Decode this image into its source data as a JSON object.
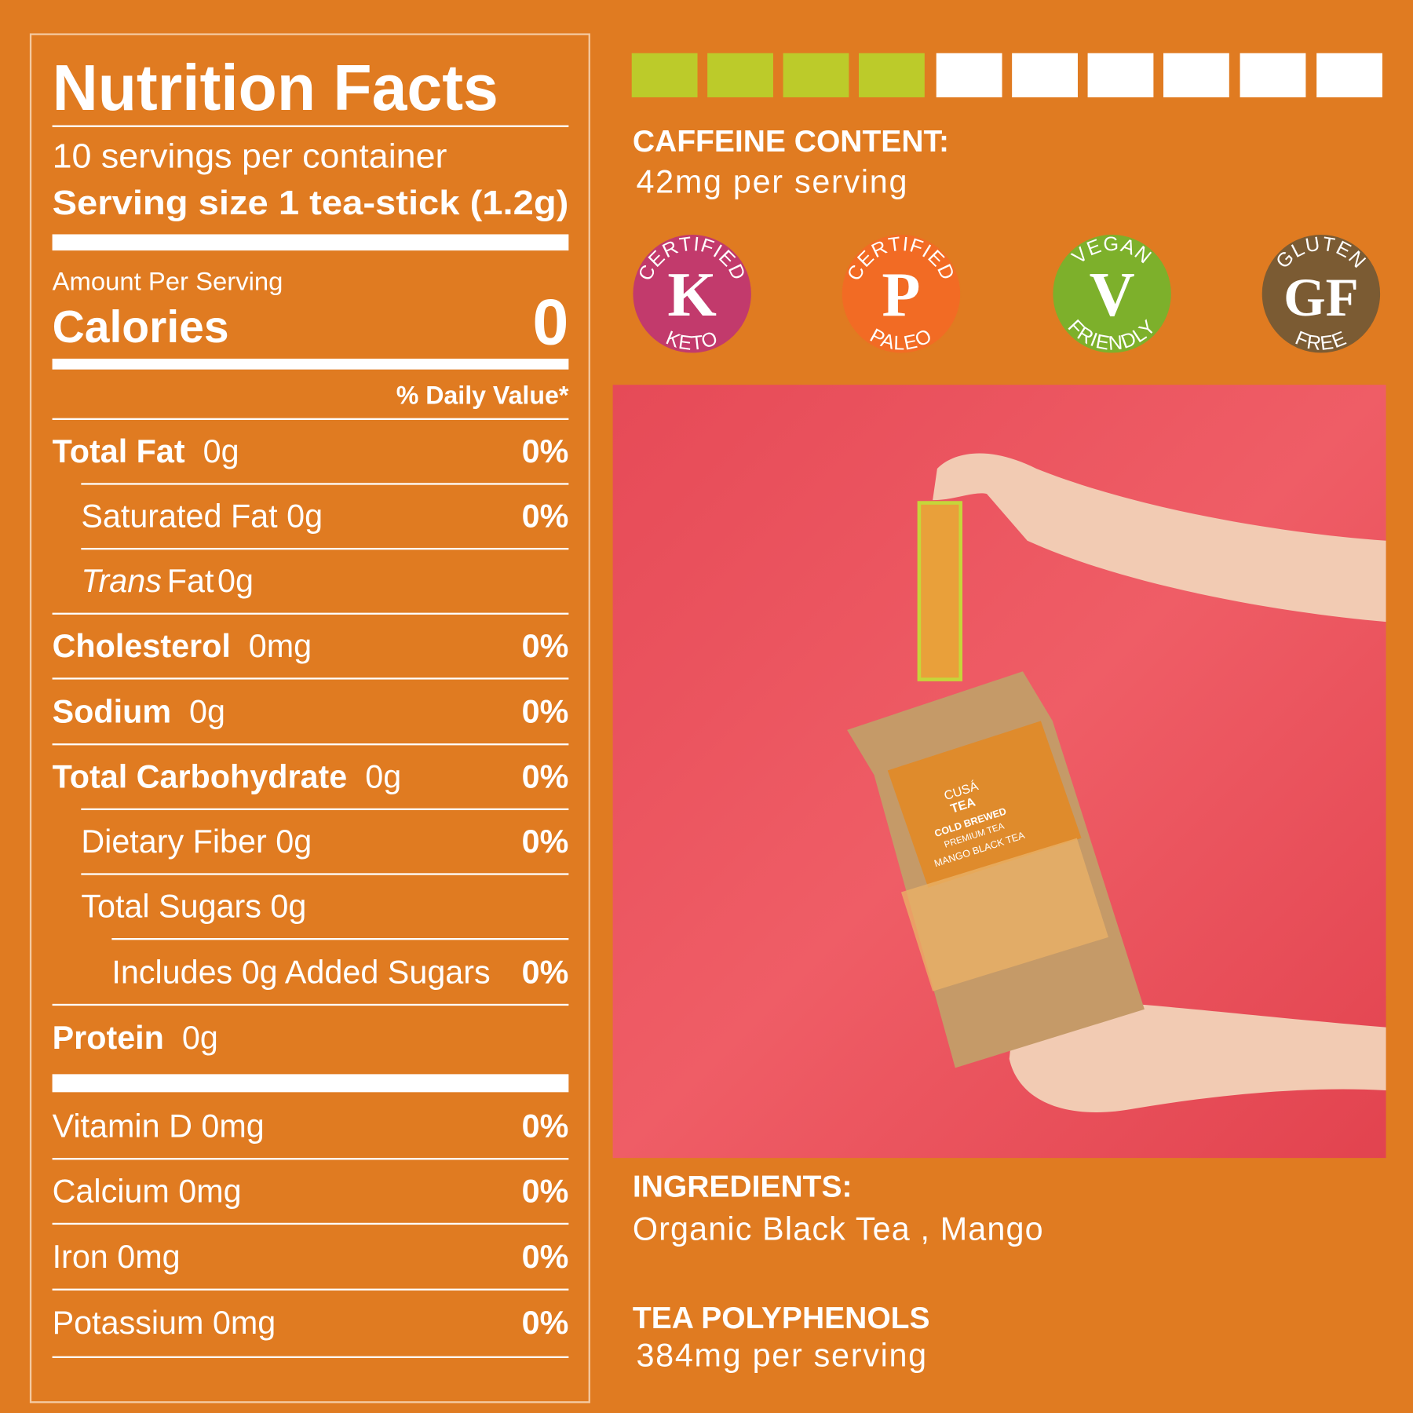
{
  "nutrition": {
    "title": "Nutrition Facts",
    "servings": "10 servings per container",
    "serving_size": "Serving size 1 tea-stick (1.2g)",
    "amount_per_serving": "Amount Per Serving",
    "calories_label": "Calories",
    "calories": 0,
    "daily_value_header": "% Daily Value*",
    "rows": [
      {
        "name": "Total Fat",
        "amount": "0g",
        "daily_value": "0%"
      },
      {
        "name": "Saturated Fat",
        "amount": "0g",
        "daily_value": "0%"
      },
      {
        "emphasis": "Trans",
        "name": "Fat",
        "amount": "0g"
      },
      {
        "name": "Cholesterol",
        "amount": "0mg",
        "daily_value": "0%"
      },
      {
        "name": "Sodium",
        "amount": "0g",
        "daily_value": "0%"
      },
      {
        "name": "Total Carbohydrate",
        "amount": "0g",
        "daily_value": "0%"
      },
      {
        "name": "Dietary Fiber",
        "amount": "0g",
        "daily_value": "0%"
      },
      {
        "name": "Total Sugars",
        "amount": "0g"
      },
      {
        "name": "Includes 0g Added Sugars",
        "daily_value": "0%"
      },
      {
        "name": "Protein",
        "amount": "0g"
      },
      {
        "name": "Vitamin D",
        "amount": "0mg",
        "daily_value": "0%"
      },
      {
        "name": "Calcium",
        "amount": "0mg",
        "daily_value": "0%"
      },
      {
        "name": "Iron",
        "amount": "0mg",
        "daily_value": "0%"
      },
      {
        "name": "Potassium",
        "amount": "0mg",
        "daily_value": "0%"
      }
    ]
  },
  "caffeine": {
    "title": "CAFFEINE CONTENT:",
    "value": "42mg per serving"
  },
  "badges": [
    {
      "top": "CERTIFIED",
      "letter": "K",
      "bottom": "KETO",
      "color": "#c23a6c"
    },
    {
      "top": "CERTIFIED",
      "letter": "P",
      "bottom": "PALEO",
      "color": "#f26b24"
    },
    {
      "top": "VEGAN",
      "letter": "V",
      "bottom": "FRIENDLY",
      "color": "#7db02b"
    },
    {
      "top": "GLUTEN",
      "letter": "GF",
      "bottom": "FREE",
      "color": "#7b5b33"
    }
  ],
  "product": {
    "brand": "CUSÁ",
    "brand_line": "TEA",
    "style": "COLD BREWED",
    "grade": "PREMIUM TEA",
    "flavor": "MANGO BLACK TEA"
  },
  "ingredients": {
    "title": "INGREDIENTS:",
    "text": "Organic Black Tea , Mango"
  },
  "polyphenols": {
    "title": "TEA POLYPHENOLS",
    "value": "384mg per serving"
  }
}
